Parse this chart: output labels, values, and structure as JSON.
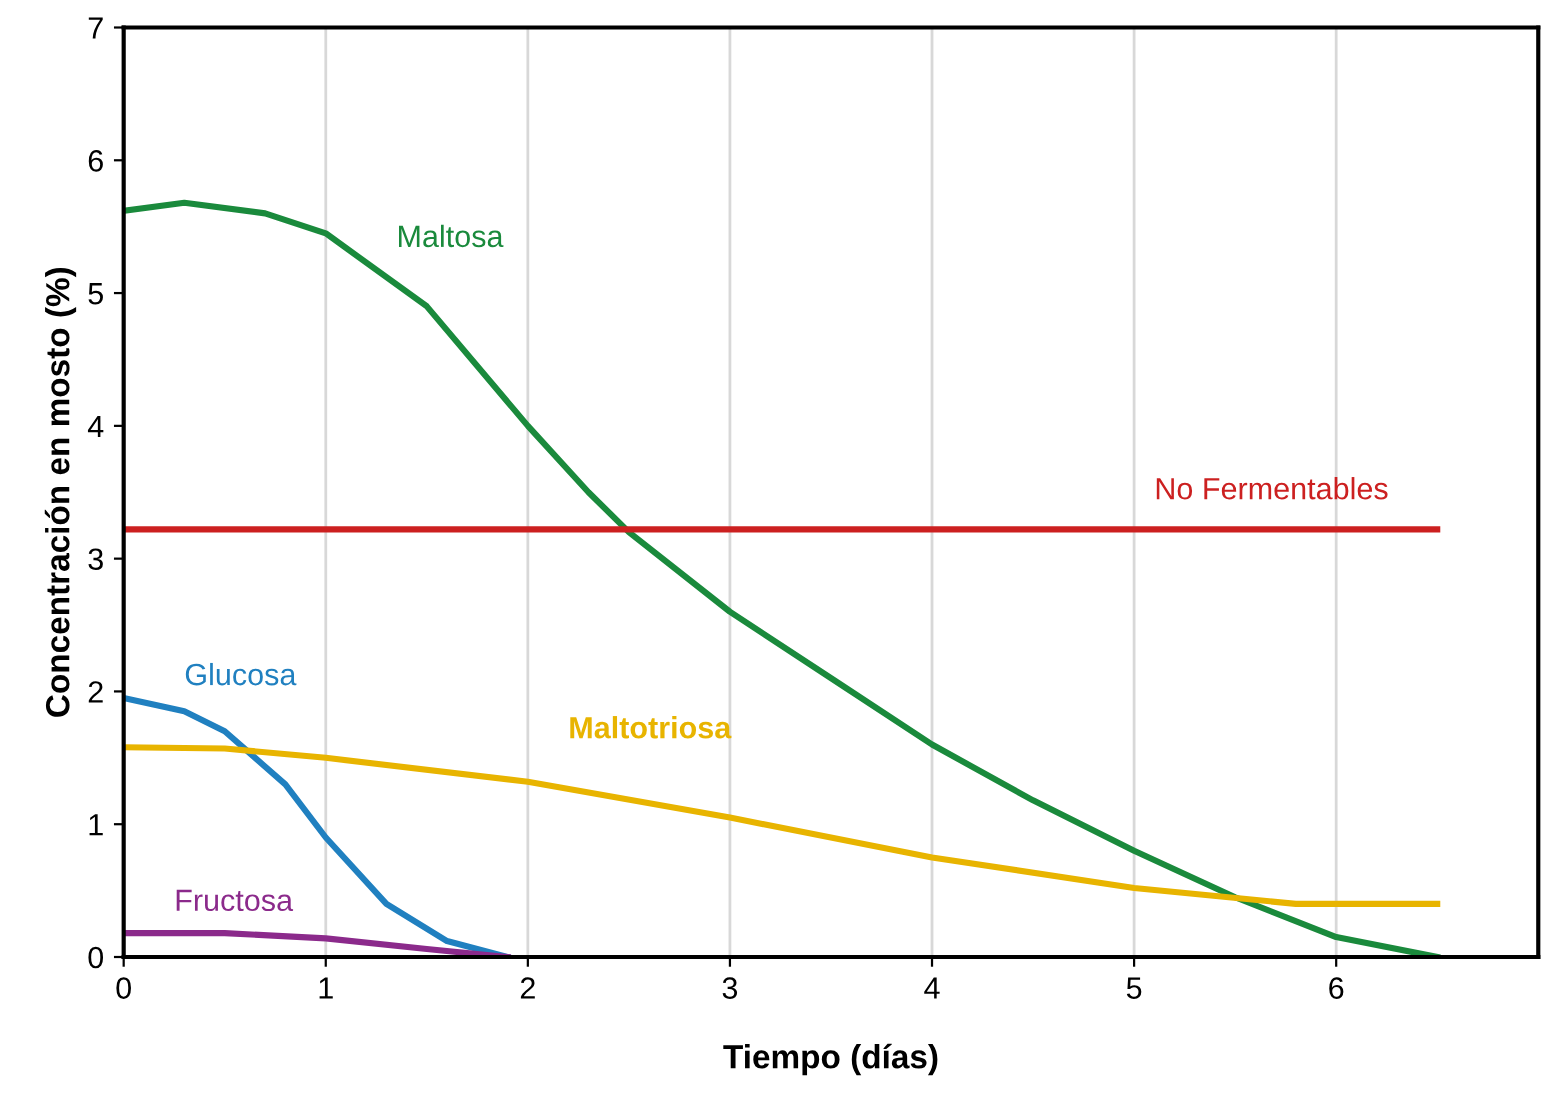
{
  "chart_data": {
    "type": "line",
    "xlabel": "Tiempo (días)",
    "ylabel": "Concentración en mosto (%)",
    "xlim": [
      0,
      7
    ],
    "ylim": [
      0,
      7
    ],
    "xticks": [
      0,
      1,
      2,
      3,
      4,
      5,
      6
    ],
    "yticks": [
      0,
      1,
      2,
      3,
      4,
      5,
      6,
      7
    ],
    "grid": "x",
    "legend": false,
    "marker": "none",
    "line_style": "solid",
    "series": [
      {
        "name": "Maltosa",
        "color": "#1a8a3c",
        "x": [
          0,
          0.3,
          0.7,
          1,
          1.5,
          2,
          2.3,
          2.5,
          3,
          3.5,
          4,
          4.5,
          5,
          5.5,
          6,
          6.5
        ],
        "values": [
          5.62,
          5.68,
          5.6,
          5.45,
          4.9,
          4.0,
          3.5,
          3.2,
          2.6,
          2.1,
          1.6,
          1.18,
          0.8,
          0.45,
          0.15,
          0
        ]
      },
      {
        "name": "No Fermentables",
        "color": "#cc2020",
        "x": [
          0,
          6.5
        ],
        "values": [
          3.22,
          3.22
        ]
      },
      {
        "name": "Glucosa",
        "color": "#2080c0",
        "x": [
          0,
          0.3,
          0.5,
          0.8,
          1,
          1.3,
          1.6,
          1.9
        ],
        "values": [
          1.95,
          1.85,
          1.7,
          1.3,
          0.9,
          0.4,
          0.12,
          0
        ]
      },
      {
        "name": "Maltotriosa",
        "color": "#e8b400",
        "x": [
          0,
          0.5,
          1,
          2,
          3,
          4,
          5,
          5.8,
          6.5
        ],
        "values": [
          1.58,
          1.57,
          1.5,
          1.32,
          1.05,
          0.75,
          0.52,
          0.4,
          0.4
        ]
      },
      {
        "name": "Fructosa",
        "color": "#8b2a8b",
        "x": [
          0,
          0.5,
          1,
          1.5,
          1.9
        ],
        "values": [
          0.18,
          0.18,
          0.14,
          0.06,
          0
        ]
      }
    ]
  }
}
